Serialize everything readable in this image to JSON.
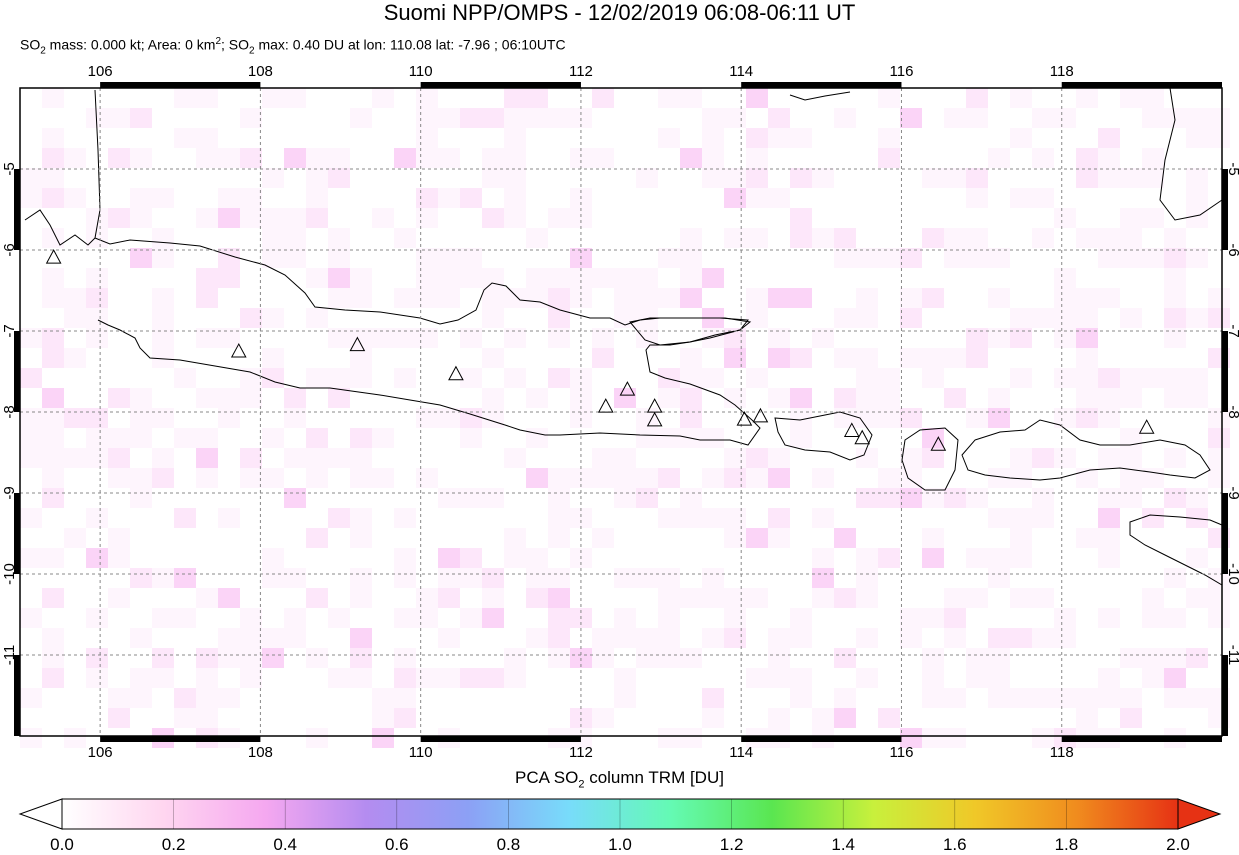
{
  "title": "Suomi NPP/OMPS - 12/02/2019 06:08-06:11 UT",
  "subtitle": {
    "so2_mass_label": "SO",
    "so2_mass_rest": " mass: 0.000 kt; Area: 0 km",
    "area_rest": "; SO",
    "max_rest": " max: 0.40 DU at lon: 110.08 lat: -7.96 ; 06:10UTC"
  },
  "map": {
    "lon_range": [
      105,
      120
    ],
    "lat_range": [
      -12,
      -4
    ],
    "lon_ticks": [
      "106",
      "108",
      "110",
      "112",
      "114",
      "116",
      "118"
    ],
    "lat_ticks": [
      "-5",
      "-6",
      "-7",
      "-8",
      "-9",
      "-10",
      "-11"
    ],
    "volcanoes": [
      {
        "lon": 105.42,
        "lat": -6.1
      },
      {
        "lon": 107.73,
        "lat": -7.26
      },
      {
        "lon": 109.21,
        "lat": -7.18
      },
      {
        "lon": 110.44,
        "lat": -7.54
      },
      {
        "lon": 112.31,
        "lat": -7.94
      },
      {
        "lon": 112.58,
        "lat": -7.73
      },
      {
        "lon": 112.92,
        "lat": -7.94
      },
      {
        "lon": 112.92,
        "lat": -8.11
      },
      {
        "lon": 114.04,
        "lat": -8.1
      },
      {
        "lon": 114.24,
        "lat": -8.06
      },
      {
        "lon": 115.38,
        "lat": -8.24
      },
      {
        "lon": 115.51,
        "lat": -8.33
      },
      {
        "lon": 116.46,
        "lat": -8.41
      },
      {
        "lon": 119.06,
        "lat": -8.2
      }
    ]
  },
  "colorbar": {
    "title_prefix": "PCA SO",
    "title_suffix": " column TRM [DU]",
    "ticks": [
      "0.0",
      "0.2",
      "0.4",
      "0.6",
      "0.8",
      "1.0",
      "1.2",
      "1.4",
      "1.6",
      "1.8",
      "2.0"
    ],
    "colors": [
      "#ffffff",
      "#ffd6f0",
      "#f5a8f0",
      "#b48cf0",
      "#8ca0f5",
      "#78dcfa",
      "#64fab4",
      "#5ae650",
      "#c8f03c",
      "#f0c828",
      "#f08c1e",
      "#e63214"
    ]
  }
}
